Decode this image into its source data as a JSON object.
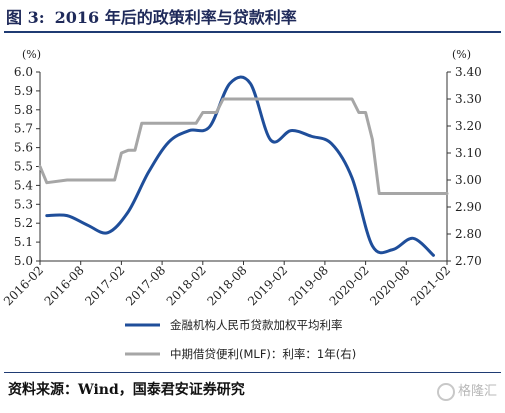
{
  "header": {
    "figure_label": "图 3:",
    "title": "2016 年后的政策利率与贷款利率"
  },
  "footer": {
    "source": "资料来源：Wind，国泰君安证券研究",
    "watermark": "格隆汇"
  },
  "colors": {
    "series_loan": "#1f4e9a",
    "series_mlf": "#a6a6a6",
    "rule": "#1f3b73"
  },
  "chart_data": {
    "type": "line",
    "left_axis": {
      "unit": "(%)",
      "ylim": [
        5.0,
        6.0
      ],
      "ticks": [
        "6.0",
        "5.9",
        "5.8",
        "5.7",
        "5.6",
        "5.5",
        "5.4",
        "5.3",
        "5.2",
        "5.1",
        "5.0"
      ]
    },
    "right_axis": {
      "unit": "(%)",
      "ylim": [
        2.7,
        3.4
      ],
      "ticks": [
        "3.40",
        "3.30",
        "3.20",
        "3.10",
        "3.00",
        "2.90",
        "2.80",
        "2.70"
      ]
    },
    "x_ticks": [
      "2016-02",
      "2016-08",
      "2017-02",
      "2017-08",
      "2018-02",
      "2018-08",
      "2019-02",
      "2019-08",
      "2020-02",
      "2020-08",
      "2021-02"
    ],
    "grid": false,
    "legend_position": "bottom",
    "series": [
      {
        "name": "金融机构人民币贷款加权平均利率",
        "axis": "left",
        "style": "smooth",
        "points": [
          [
            "2016-03",
            5.24
          ],
          [
            "2016-06",
            5.24
          ],
          [
            "2016-09",
            5.19
          ],
          [
            "2016-12",
            5.15
          ],
          [
            "2017-03",
            5.26
          ],
          [
            "2017-06",
            5.47
          ],
          [
            "2017-09",
            5.63
          ],
          [
            "2017-12",
            5.69
          ],
          [
            "2018-03",
            5.71
          ],
          [
            "2018-06",
            5.94
          ],
          [
            "2018-09",
            5.94
          ],
          [
            "2018-12",
            5.64
          ],
          [
            "2019-03",
            5.69
          ],
          [
            "2019-06",
            5.66
          ],
          [
            "2019-09",
            5.62
          ],
          [
            "2019-12",
            5.44
          ],
          [
            "2020-03",
            5.08
          ],
          [
            "2020-06",
            5.06
          ],
          [
            "2020-09",
            5.12
          ],
          [
            "2020-12",
            5.03
          ]
        ]
      },
      {
        "name": "中期借贷便利(MLF)：利率：1年(右)",
        "axis": "right",
        "style": "step",
        "points": [
          [
            "2016-02",
            3.05
          ],
          [
            "2016-03",
            2.99
          ],
          [
            "2016-06",
            3.0
          ],
          [
            "2016-09",
            3.0
          ],
          [
            "2016-12",
            3.0
          ],
          [
            "2017-01",
            3.0
          ],
          [
            "2017-02",
            3.1
          ],
          [
            "2017-03",
            3.11
          ],
          [
            "2017-04",
            3.11
          ],
          [
            "2017-05",
            3.21
          ],
          [
            "2017-06",
            3.21
          ],
          [
            "2017-12",
            3.21
          ],
          [
            "2018-01",
            3.21
          ],
          [
            "2018-02",
            3.25
          ],
          [
            "2018-03",
            3.25
          ],
          [
            "2018-04",
            3.25
          ],
          [
            "2018-05",
            3.3
          ],
          [
            "2018-12",
            3.3
          ],
          [
            "2019-12",
            3.3
          ],
          [
            "2020-01",
            3.25
          ],
          [
            "2020-02",
            3.25
          ],
          [
            "2020-03",
            3.15
          ],
          [
            "2020-04",
            2.95
          ],
          [
            "2021-02",
            2.95
          ]
        ]
      }
    ]
  }
}
